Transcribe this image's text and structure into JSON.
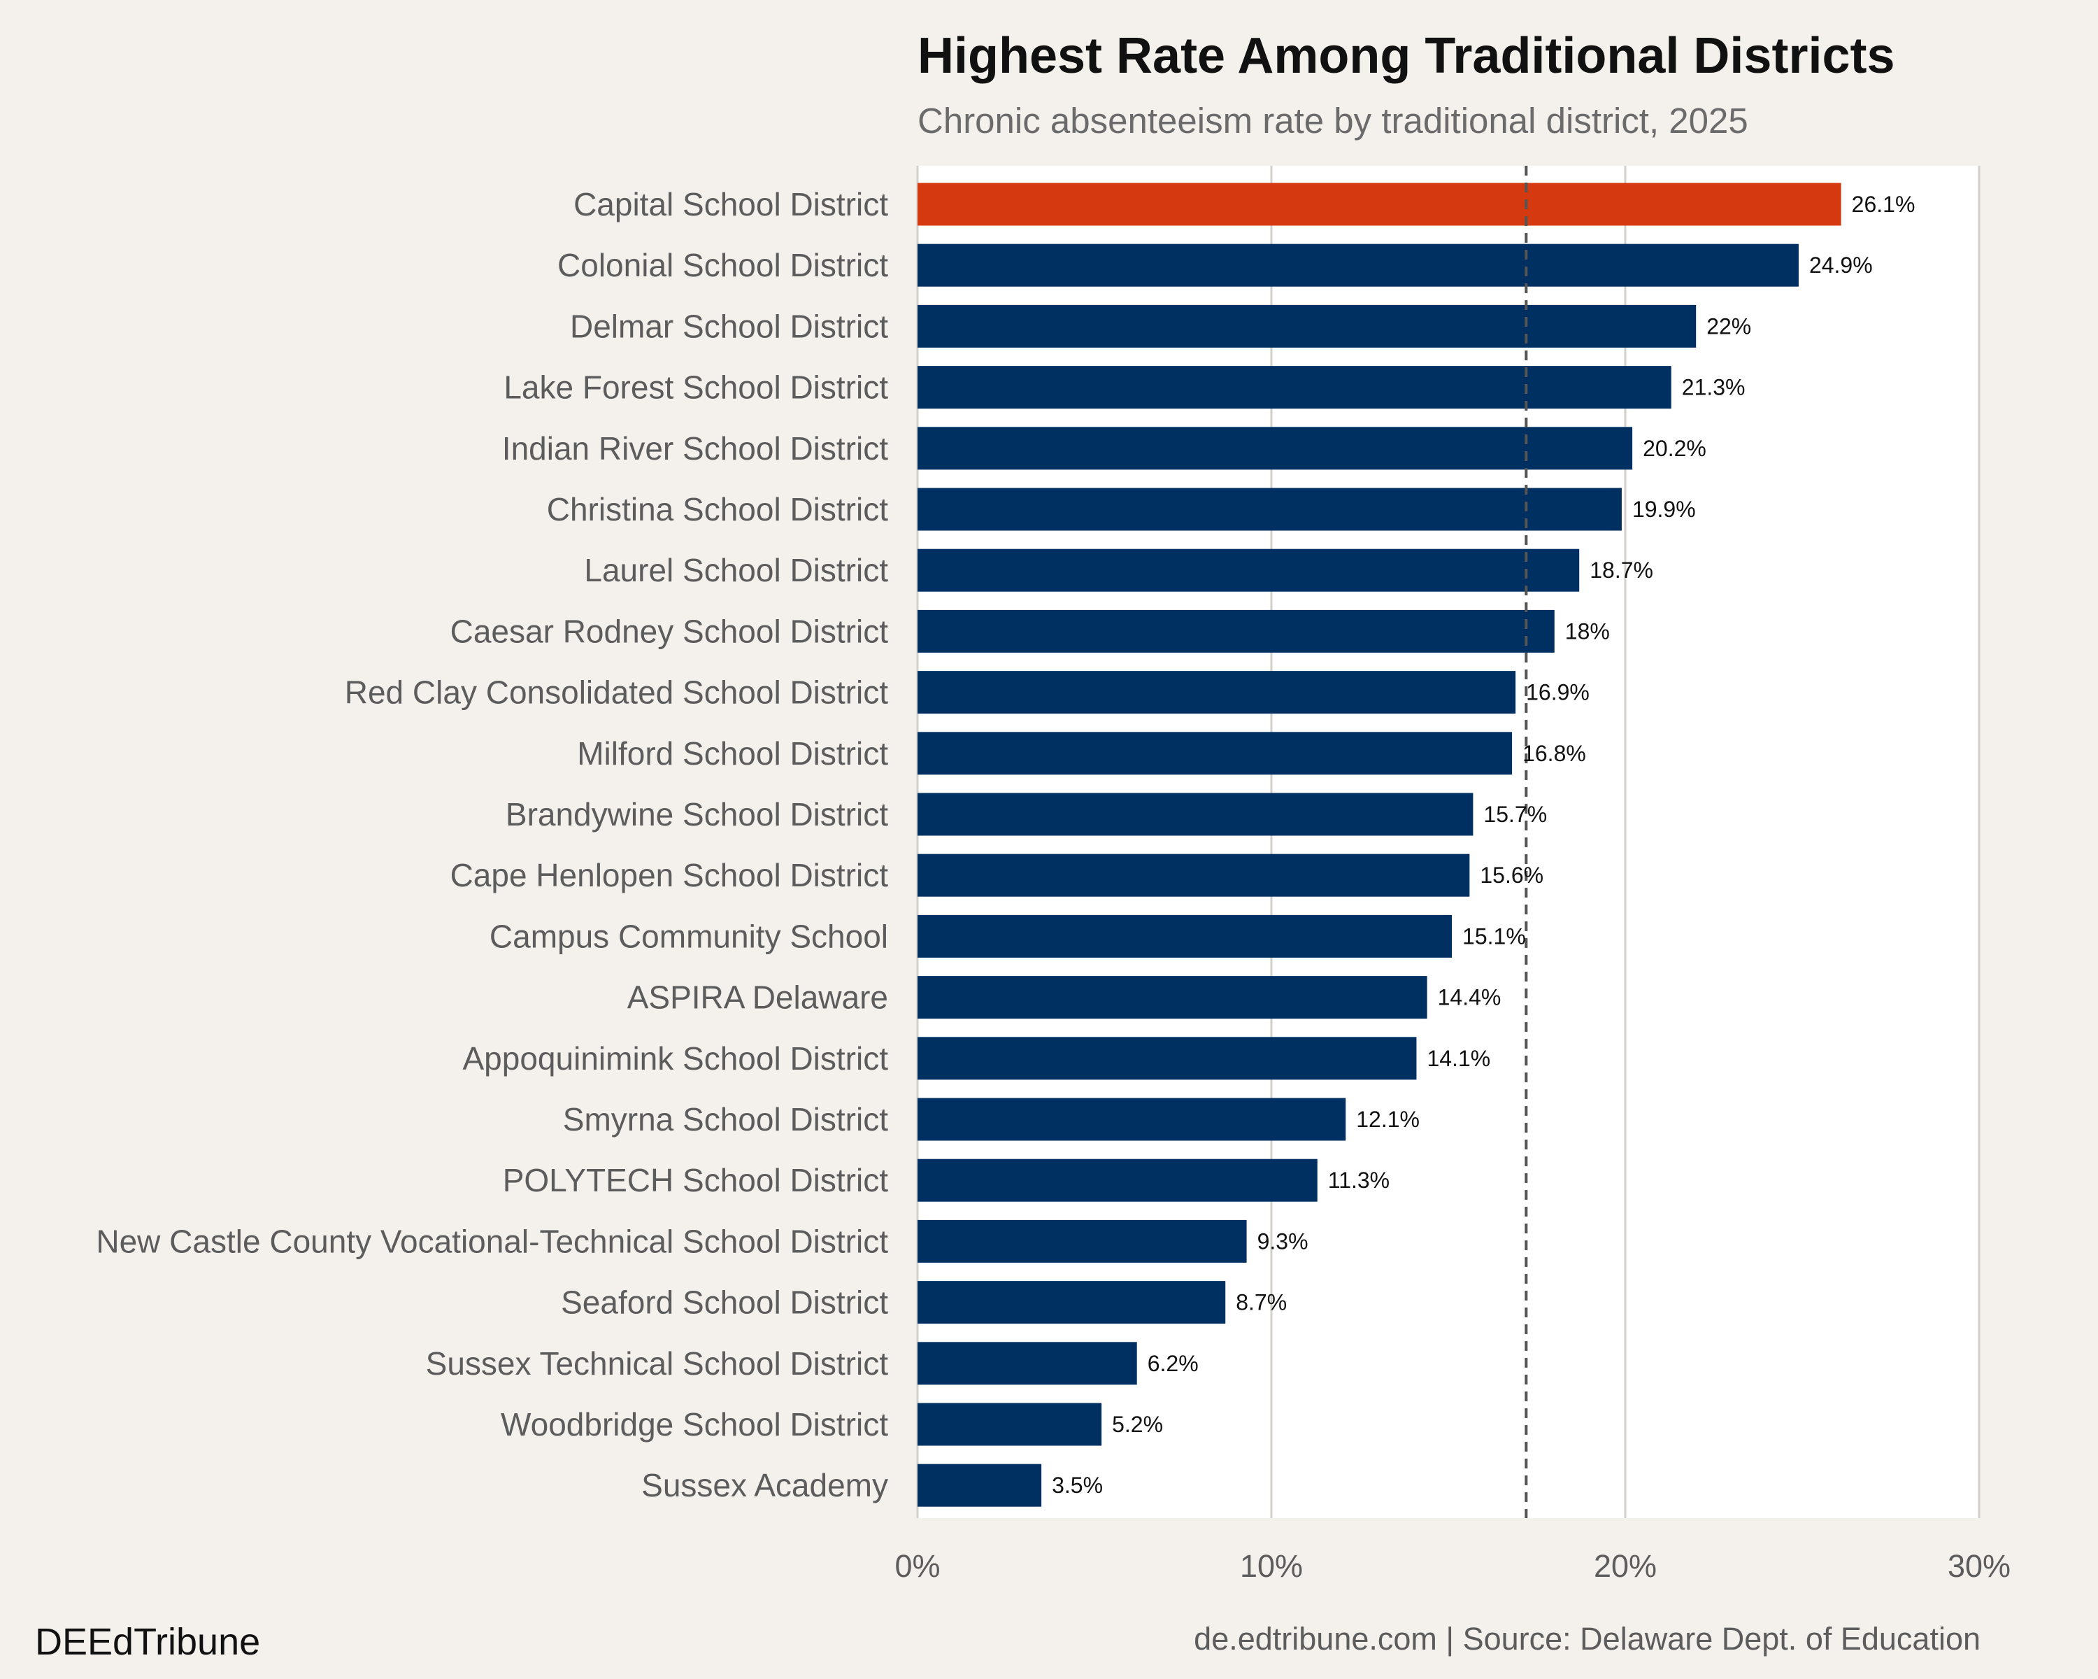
{
  "chart_data": {
    "type": "bar",
    "orientation": "horizontal",
    "title": "Highest Rate Among Traditional Districts",
    "subtitle": "Chronic absenteeism rate by traditional district, 2025",
    "categories": [
      "Capital School District",
      "Colonial School District",
      "Delmar School District",
      "Lake Forest School District",
      "Indian River School District",
      "Christina School District",
      "Laurel School District",
      "Caesar Rodney School District",
      "Red Clay Consolidated School District",
      "Milford School District",
      "Brandywine School District",
      "Cape Henlopen School District",
      "Campus Community School",
      "ASPIRA Delaware",
      "Appoquinimink School District",
      "Smyrna School District",
      "POLYTECH School District",
      "New Castle County Vocational-Technical School District",
      "Seaford School District",
      "Sussex Technical School District",
      "Woodbridge School District",
      "Sussex Academy"
    ],
    "values": [
      26.1,
      24.9,
      22,
      21.3,
      20.2,
      19.9,
      18.7,
      18,
      16.9,
      16.8,
      15.7,
      15.6,
      15.1,
      14.4,
      14.1,
      12.1,
      11.3,
      9.3,
      8.7,
      6.2,
      5.2,
      3.5
    ],
    "value_labels": [
      "26.1%",
      "24.9%",
      "22%",
      "21.3%",
      "20.2%",
      "19.9%",
      "18.7%",
      "18%",
      "16.9%",
      "16.8%",
      "15.7%",
      "15.6%",
      "15.1%",
      "14.4%",
      "14.1%",
      "12.1%",
      "11.3%",
      "9.3%",
      "8.7%",
      "6.2%",
      "5.2%",
      "3.5%"
    ],
    "highlight_index": 0,
    "reference_line": 17.2,
    "xlim": [
      0,
      30
    ],
    "xticks": [
      0,
      10,
      20,
      30
    ],
    "xtick_labels": [
      "0%",
      "10%",
      "20%",
      "30%"
    ],
    "xlabel": "",
    "ylabel": "",
    "grid": "vertical",
    "legend": "none"
  },
  "colors": {
    "highlight": "#d4390f",
    "bar": "#003062",
    "panel": "#ffffff",
    "background": "#f4f1ec",
    "grid": "#d3d0cb",
    "reference_line": "#555555"
  },
  "footer": {
    "brand": "DEEdTribune",
    "source": "de.edtribune.com | Source: Delaware Dept. of Education"
  }
}
